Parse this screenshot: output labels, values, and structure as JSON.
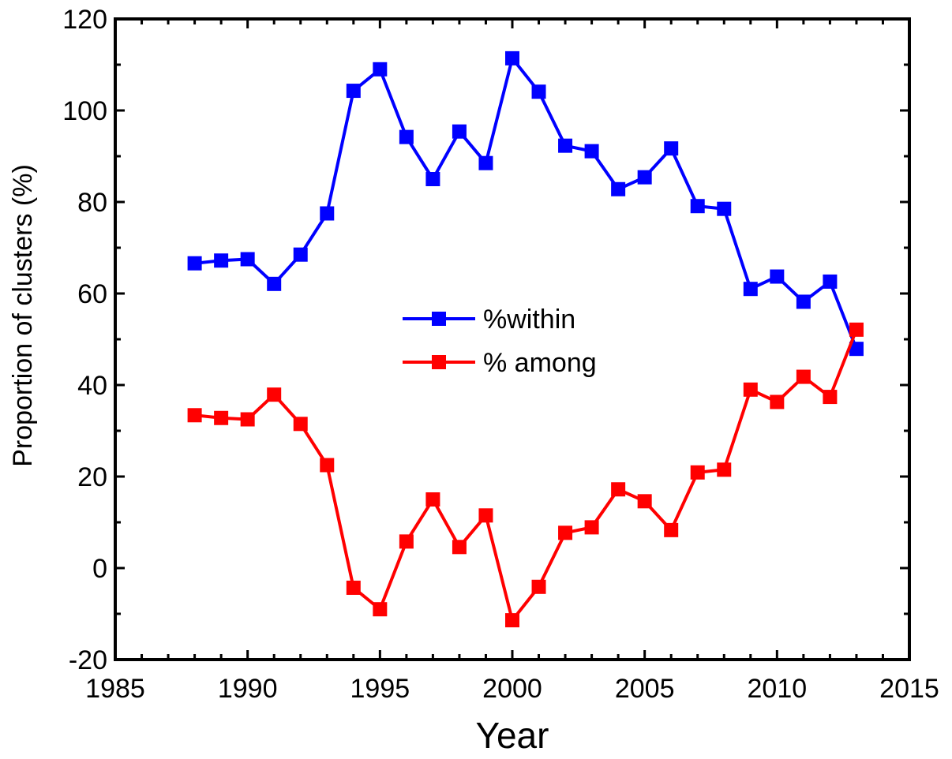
{
  "chart_data": {
    "type": "line",
    "title": "",
    "xlabel": "Year",
    "ylabel": "Proportion of  clusters (%)",
    "xlim": [
      1985,
      2015
    ],
    "ylim": [
      -20,
      120
    ],
    "xticks": [
      1985,
      1990,
      1995,
      2000,
      2005,
      2010,
      2015
    ],
    "yticks": [
      -20,
      0,
      20,
      40,
      60,
      80,
      100,
      120
    ],
    "x": [
      1988,
      1989,
      1990,
      1991,
      1992,
      1993,
      1994,
      1995,
      1996,
      1997,
      1998,
      1999,
      2000,
      2001,
      2002,
      2003,
      2004,
      2005,
      2006,
      2007,
      2008,
      2009,
      2010,
      2011,
      2012,
      2013
    ],
    "series": [
      {
        "name": "%within",
        "color": "#0000ff",
        "values": [
          66.6,
          67.2,
          67.5,
          62.1,
          68.5,
          77.5,
          104.3,
          109.0,
          94.2,
          85.0,
          95.4,
          88.5,
          111.4,
          104.1,
          92.3,
          91.1,
          82.8,
          85.4,
          91.7,
          79.1,
          78.5,
          61.0,
          63.7,
          58.2,
          62.6,
          47.9
        ]
      },
      {
        "name": "% among",
        "color": "#ff0000",
        "values": [
          33.4,
          32.8,
          32.5,
          37.9,
          31.5,
          22.5,
          -4.3,
          -9.0,
          5.8,
          15.0,
          4.6,
          11.5,
          -11.4,
          -4.1,
          7.7,
          8.9,
          17.2,
          14.6,
          8.3,
          20.9,
          21.5,
          39.0,
          36.3,
          41.8,
          37.4,
          52.1
        ]
      }
    ],
    "legend_position": "center",
    "grid": false
  }
}
